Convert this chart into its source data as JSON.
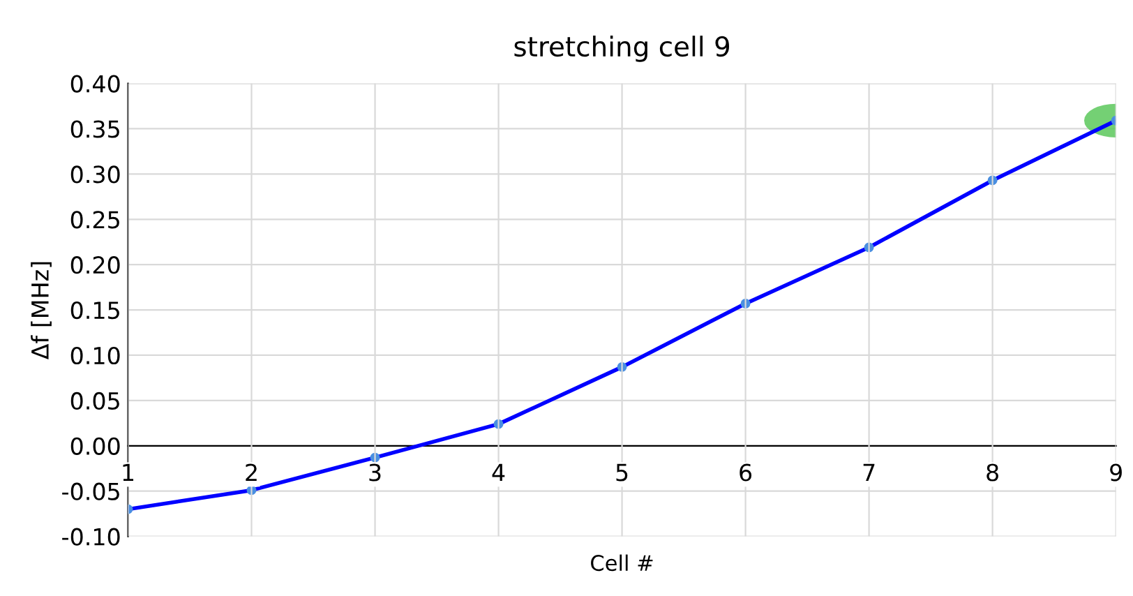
{
  "chart_data": {
    "type": "line",
    "title": "stretching cell 9",
    "xlabel": "Cell #",
    "ylabel": "Δf [MHz]",
    "x": [
      1,
      2,
      3,
      4,
      5,
      6,
      7,
      8,
      9
    ],
    "series": [
      {
        "color": "#0000ff",
        "values": [
          -0.07,
          -0.049,
          -0.013,
          0.024,
          0.087,
          0.157,
          0.219,
          0.293,
          0.359
        ]
      }
    ],
    "xlim": [
      1,
      9
    ],
    "xticks": [
      1,
      2,
      3,
      4,
      5,
      6,
      7,
      8,
      9
    ],
    "ylim": [
      -0.1,
      0.4
    ],
    "yticks": [
      {
        "value": -0.1,
        "label": "-0.10"
      },
      {
        "value": -0.05,
        "label": "-0.05"
      },
      {
        "value": 0,
        "label": "0.00"
      },
      {
        "value": 0.05,
        "label": "0.05"
      },
      {
        "value": 0.1,
        "label": "0.10"
      },
      {
        "value": 0.15,
        "label": "0.15"
      },
      {
        "value": 0.2,
        "label": "0.20"
      },
      {
        "value": 0.25,
        "label": "0.25"
      },
      {
        "value": 0.3,
        "label": "0.30"
      },
      {
        "value": 0.35,
        "label": "0.35"
      },
      {
        "value": 0.4,
        "label": "0.40"
      }
    ],
    "grid": true,
    "marker": "circle",
    "line_style": "solid",
    "legend": false
  }
}
